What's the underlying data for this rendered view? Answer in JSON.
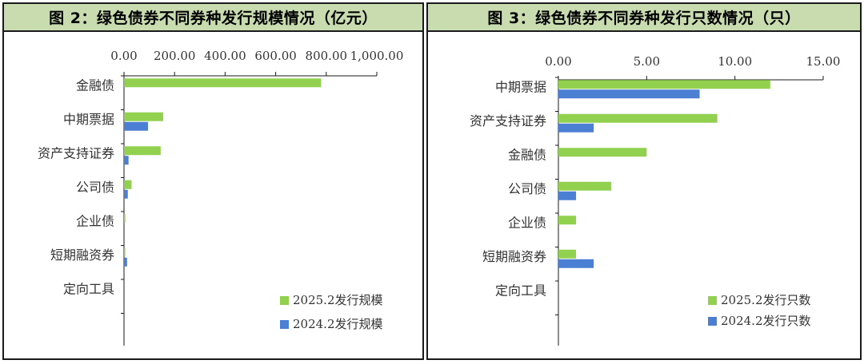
{
  "chart_data": [
    {
      "type": "bar",
      "orientation": "horizontal",
      "title": "图 2：绿色债券不同券种发行规模情况（亿元）",
      "categories": [
        "金融债",
        "中期票据",
        "资产支持证券",
        "公司债",
        "企业债",
        "短期融资券",
        "定向工具"
      ],
      "series": [
        {
          "name": "2025.2发行规模",
          "color": "#92d050",
          "values": [
            780,
            155,
            145,
            30,
            5,
            3,
            0
          ]
        },
        {
          "name": "2024.2发行规模",
          "color": "#4a7fd4",
          "values": [
            0,
            95,
            18,
            15,
            0,
            12,
            0
          ]
        }
      ],
      "xlim": [
        0,
        1000
      ],
      "xticks": [
        "0.00",
        "200.00",
        "400.00",
        "600.00",
        "800.00",
        "1,000.00"
      ],
      "x_axis_position": "top",
      "legend_position": "bottom-right",
      "grid": false
    },
    {
      "type": "bar",
      "orientation": "horizontal",
      "title": "图 3：绿色债券不同券种发行只数情况（只）",
      "categories": [
        "中期票据",
        "资产支持证券",
        "金融债",
        "公司债",
        "企业债",
        "短期融资券",
        "定向工具"
      ],
      "series": [
        {
          "name": "2025.2发行只数",
          "color": "#92d050",
          "values": [
            12,
            9,
            5,
            3,
            1,
            1,
            0
          ]
        },
        {
          "name": "2024.2发行只数",
          "color": "#4a7fd4",
          "values": [
            8,
            2,
            0,
            1,
            0,
            2,
            0
          ]
        }
      ],
      "xlim": [
        0,
        15
      ],
      "xticks": [
        "0.00",
        "5.00",
        "10.00",
        "15.00"
      ],
      "x_axis_position": "top",
      "legend_position": "bottom-right",
      "grid": false
    }
  ]
}
